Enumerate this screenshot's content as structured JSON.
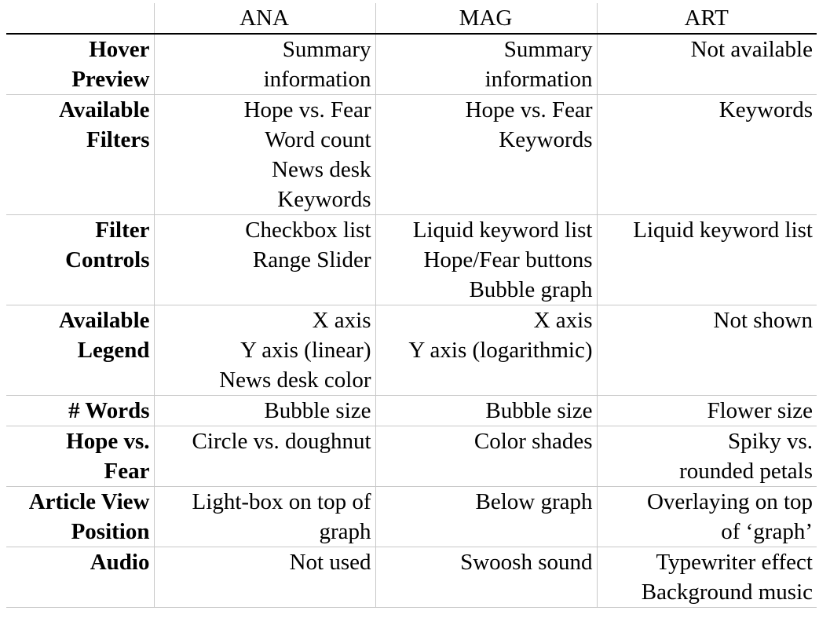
{
  "table": {
    "columns": [
      "",
      "ANA",
      "MAG",
      "ART"
    ],
    "rows": [
      {
        "header": [
          "Hover",
          "Preview"
        ],
        "cells": [
          [
            "Summary",
            "information"
          ],
          [
            "Summary",
            "information"
          ],
          [
            "Not available"
          ]
        ]
      },
      {
        "header": [
          "Available",
          "Filters"
        ],
        "cells": [
          [
            "Hope vs. Fear",
            "Word count",
            "News desk",
            "Keywords"
          ],
          [
            "Hope vs. Fear",
            "Keywords"
          ],
          [
            "Keywords"
          ]
        ]
      },
      {
        "header": [
          "Filter",
          "Controls"
        ],
        "cells": [
          [
            "Checkbox list",
            "Range Slider"
          ],
          [
            "Liquid keyword list",
            "Hope/Fear buttons",
            "Bubble graph"
          ],
          [
            "Liquid keyword list"
          ]
        ]
      },
      {
        "header": [
          "Available",
          "Legend"
        ],
        "cells": [
          [
            "X axis",
            "Y axis (linear)",
            "News desk color"
          ],
          [
            "X axis",
            "Y axis (logarithmic)"
          ],
          [
            "Not shown"
          ]
        ]
      },
      {
        "header": [
          "# Words"
        ],
        "cells": [
          [
            "Bubble size"
          ],
          [
            "Bubble size"
          ],
          [
            "Flower size"
          ]
        ]
      },
      {
        "header": [
          "Hope vs.",
          "Fear"
        ],
        "cells": [
          [
            "Circle vs. doughnut"
          ],
          [
            "Color shades"
          ],
          [
            "Spiky vs.",
            "rounded petals"
          ]
        ]
      },
      {
        "header": [
          "Article View",
          "Position"
        ],
        "cells": [
          [
            "Light-box on top of",
            "graph"
          ],
          [
            "Below graph"
          ],
          [
            "Overlaying on top",
            "of ‘graph’"
          ]
        ]
      },
      {
        "header": [
          "Audio"
        ],
        "cells": [
          [
            "Not used"
          ],
          [
            "Swoosh sound"
          ],
          [
            "Typewriter effect",
            "Background music"
          ]
        ]
      }
    ]
  }
}
